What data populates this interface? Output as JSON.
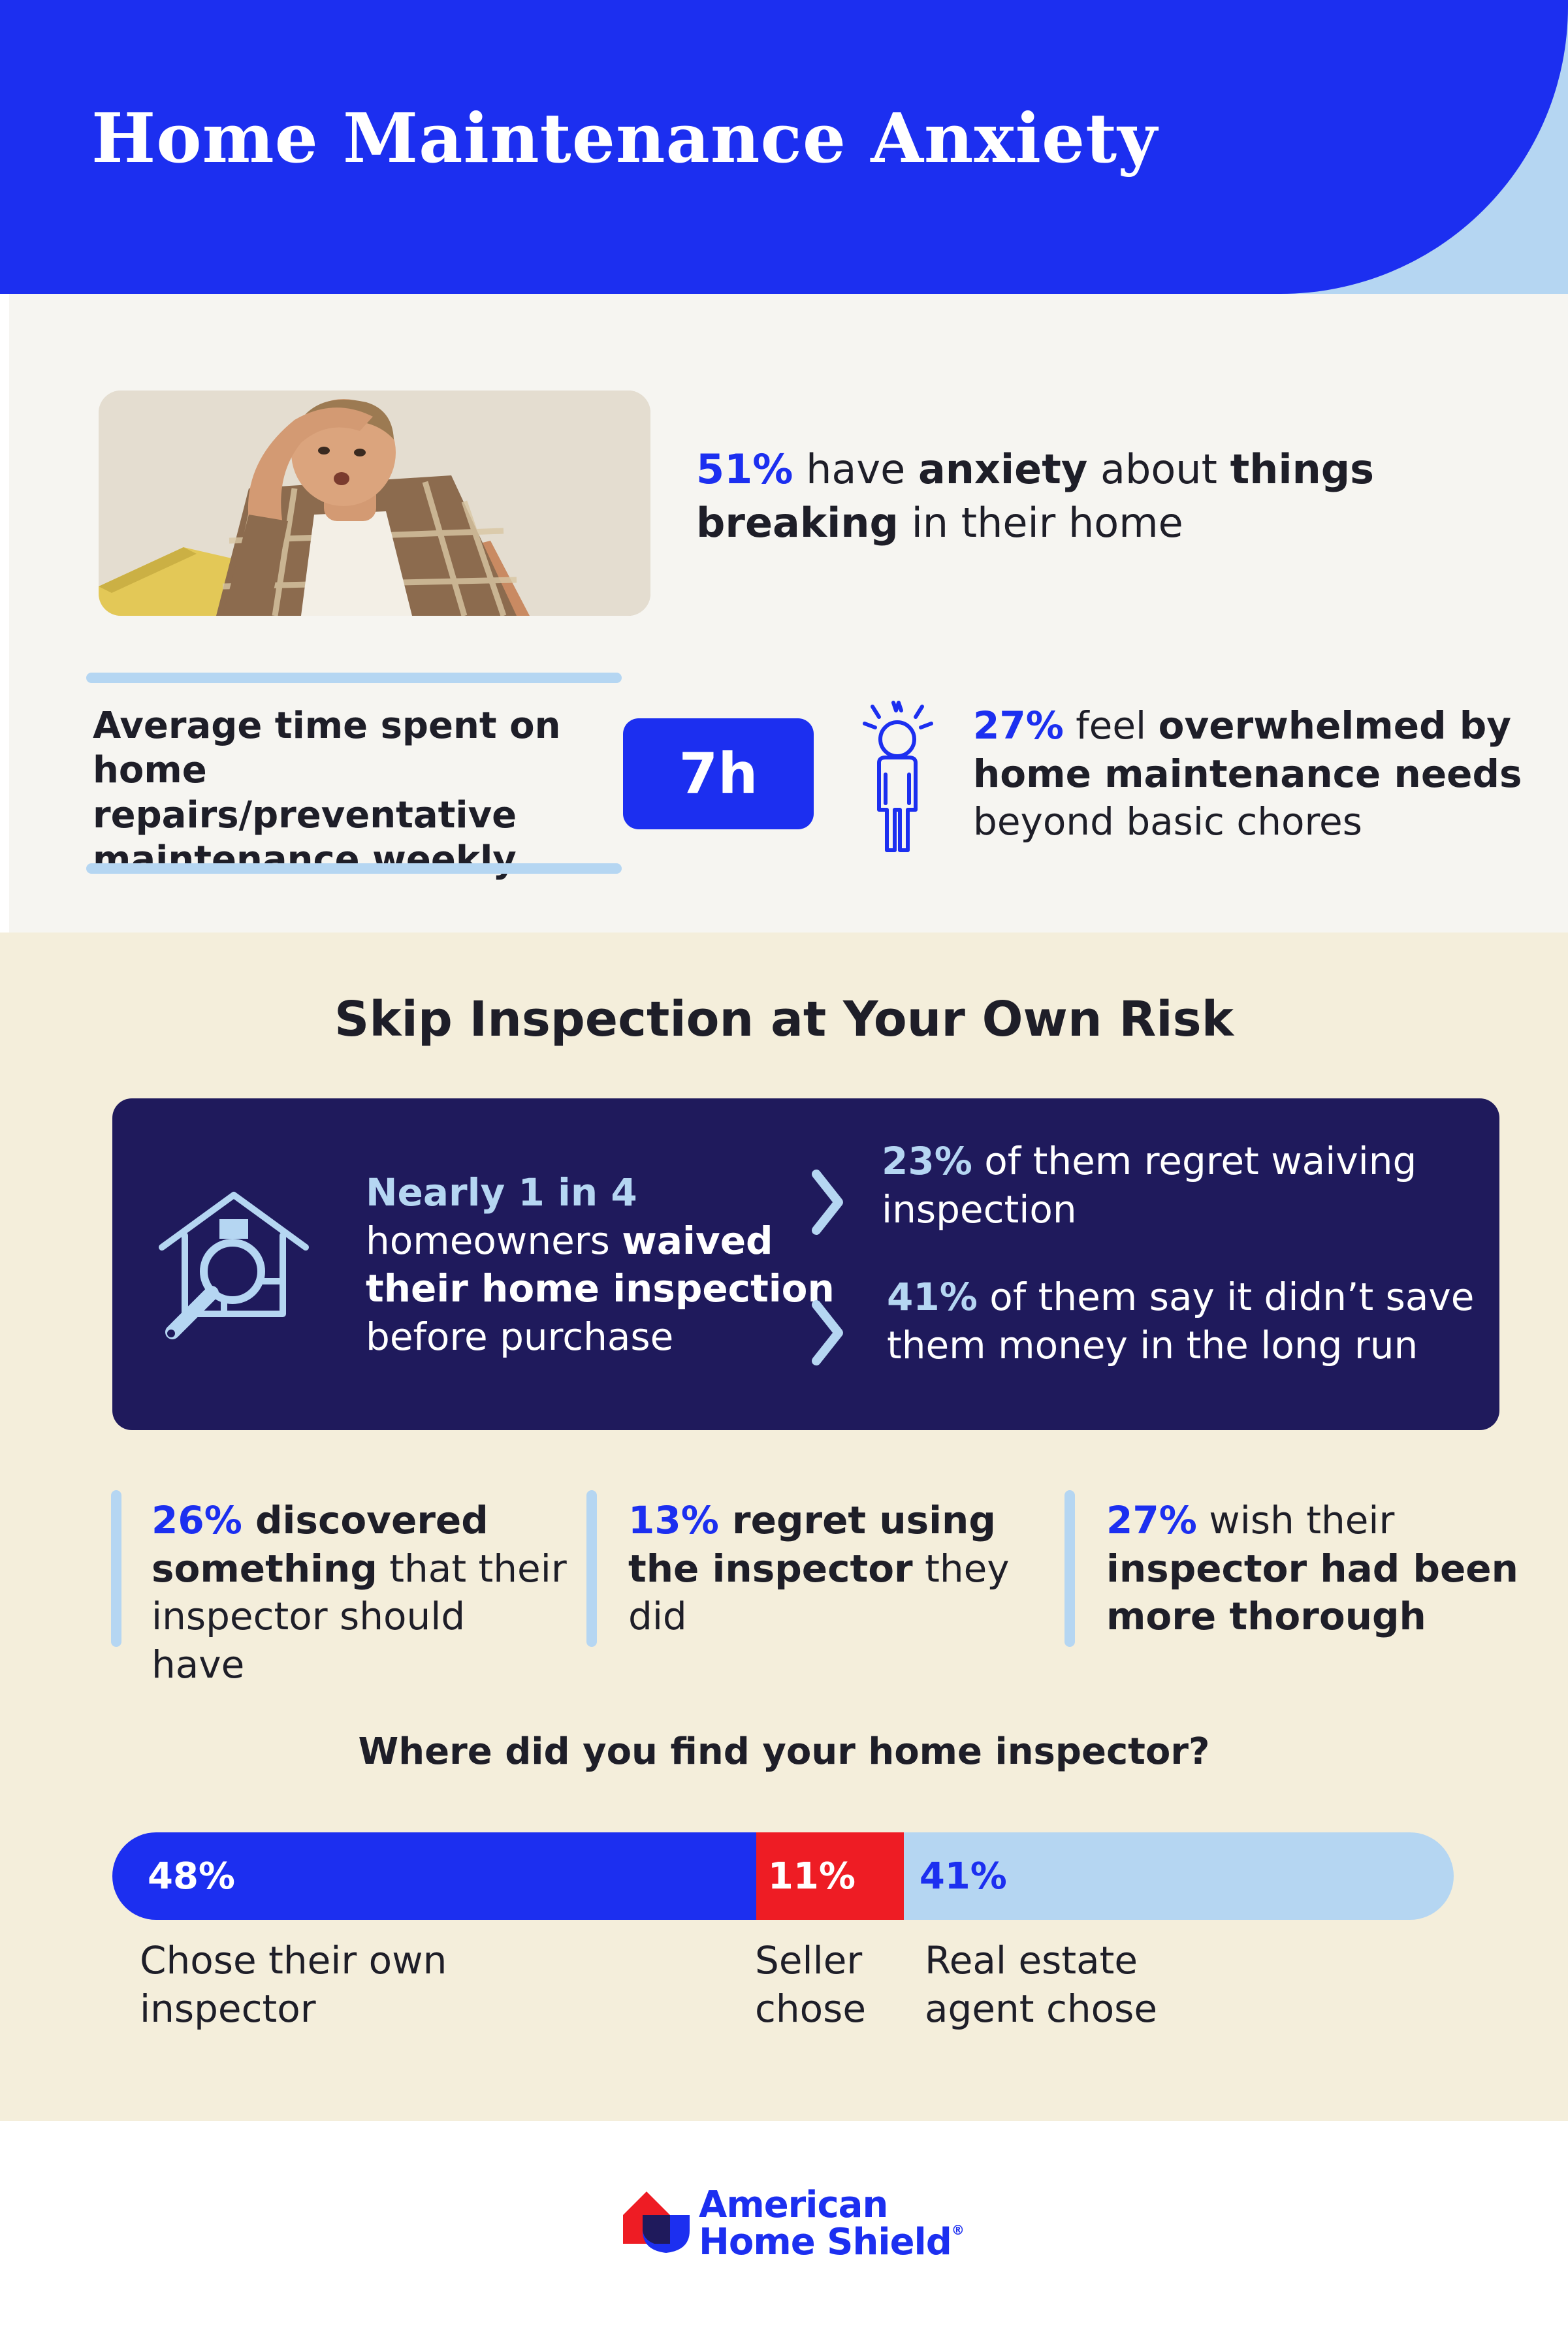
{
  "header": {
    "title": "Home Maintenance Anxiety"
  },
  "anxiety_section": {
    "stat_anxiety": {
      "pct": "51%",
      "t1": " have ",
      "b1": "anxiety",
      "t2": " about ",
      "b2": "things breaking",
      "t3": " in their home"
    },
    "avg_time_label": "Average time spent on home repairs/preventative maintenance weekly",
    "avg_time_value": "7h",
    "stat_overwhelm": {
      "pct": "27%",
      "t1": " feel ",
      "b1": "overwhelmed by home maintenance needs",
      "t2": " beyond basic chores"
    }
  },
  "inspection_section": {
    "title": "Skip Inspection at Your Own Risk",
    "waived": {
      "lead": "Nearly 1 in 4",
      "t1": " homeowners ",
      "b1": "waived their home inspection",
      "t2": " before purchase"
    },
    "regret_waiving": {
      "pct": "23%",
      "text": " of them regret waiving inspection"
    },
    "no_savings": {
      "pct": "41%",
      "text": " of them say it didn’t save them money in the long run"
    },
    "discovered": {
      "pct": "26%",
      "b1": " discovered something",
      "t1": " that their inspector should have"
    },
    "regret_inspector": {
      "pct": "13%",
      "b1": " regret using the inspector",
      "t1": " they did"
    },
    "thorough": {
      "pct": "27%",
      "t1": " wish their ",
      "b1": "inspector had been more thorough"
    },
    "question": "Where did you find your home inspector?"
  },
  "chart_data": {
    "type": "bar",
    "orientation": "horizontal-stacked",
    "title": "Where did you find your home inspector?",
    "categories": [
      "Chose their own inspector",
      "Seller chose",
      "Real estate agent chose"
    ],
    "values": [
      48,
      11,
      41
    ],
    "labels": [
      "48%",
      "11%",
      "41%"
    ],
    "colors": [
      "#1c2ff0",
      "#ee1c24",
      "#b5d6f2"
    ]
  },
  "footer": {
    "logo_line1": "American",
    "logo_line2": "Home Shield",
    "logo_mark": "®"
  },
  "colors": {
    "brand_blue": "#1c2ff0",
    "light_blue": "#b5d6f2",
    "navy": "#1f1a5c",
    "red": "#ee1c24",
    "cream": "#f4eedb"
  },
  "icons": [
    "stressed-person-icon",
    "house-magnifier-icon",
    "chevron-right-icon",
    "american-home-shield-logo-icon"
  ]
}
